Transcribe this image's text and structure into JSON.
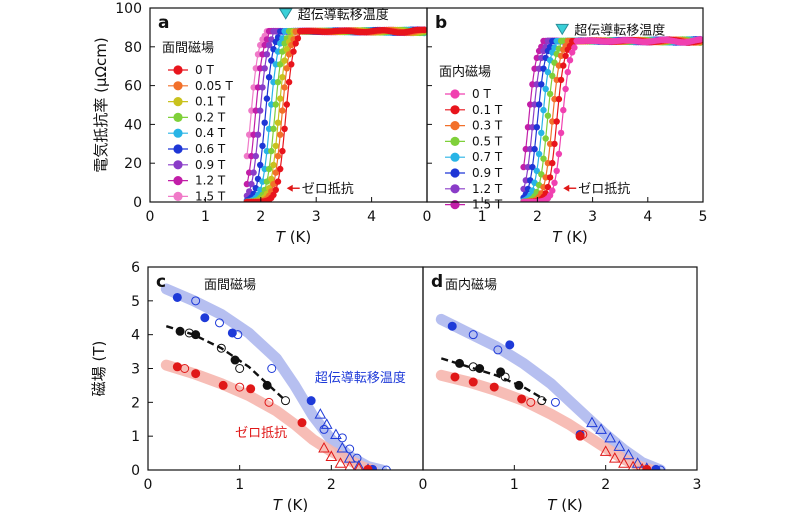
{
  "figure": {
    "panels": [
      {
        "id": "a",
        "type": "line",
        "panel_label": "a",
        "xlabel_italic": "T",
        "xlabel_unit": " (K)",
        "ylabel": "電気抵抗率 (μΩcm)",
        "xlim": [
          0,
          5
        ],
        "ylim": [
          0,
          100
        ],
        "xticks": [
          "0",
          "1",
          "2",
          "3",
          "4"
        ],
        "xtick_values": [
          0,
          1,
          2,
          3,
          4
        ],
        "yticks": [
          "0",
          "20",
          "40",
          "60",
          "80",
          "100"
        ],
        "ytick_values": [
          0,
          20,
          40,
          60,
          80,
          100
        ],
        "field_label": "面間磁場",
        "tc_label": "超伝導転移温度",
        "tc_marker_x": 2.45,
        "tc_marker_y": 97,
        "zero_label": "ゼロ抵抗",
        "zero_arrow_x": 2.45,
        "zero_arrow_y": 4,
        "normal_resistivity": 88,
        "series": [
          {
            "name": "0 T",
            "color": "#e8141c",
            "tc": 2.45
          },
          {
            "name": "0.05 T",
            "color": "#f2702a",
            "tc": 2.38
          },
          {
            "name": "0.1 T",
            "color": "#c9c21e",
            "tc": 2.32
          },
          {
            "name": "0.2 T",
            "color": "#7fd03a",
            "tc": 2.25
          },
          {
            "name": "0.4 T",
            "color": "#28b4e6",
            "tc": 2.17
          },
          {
            "name": "0.6 T",
            "color": "#1e36d6",
            "tc": 2.08
          },
          {
            "name": "0.9 T",
            "color": "#8a3cc8",
            "tc": 1.98
          },
          {
            "name": "1.2 T",
            "color": "#c21ea8",
            "tc": 1.9
          },
          {
            "name": "1.5 T",
            "color": "#f07ac8",
            "tc": 1.82
          }
        ]
      },
      {
        "id": "b",
        "type": "line",
        "panel_label": "b",
        "xlabel_italic": "T",
        "xlabel_unit": " (K)",
        "xlim": [
          0,
          5
        ],
        "ylim": [
          0,
          100
        ],
        "xticks": [
          "0",
          "1",
          "2",
          "3",
          "4",
          "5"
        ],
        "xtick_values": [
          0,
          1,
          2,
          3,
          4,
          5
        ],
        "field_label": "面内磁場",
        "tc_label": "超伝導転移温度",
        "tc_marker_x": 2.45,
        "tc_marker_y": 89,
        "zero_label": "ゼロ抵抗",
        "zero_arrow_x": 2.45,
        "zero_arrow_y": 4,
        "normal_resistivity": 83,
        "series": [
          {
            "name": "0 T",
            "color": "#f040b0",
            "tc": 2.45
          },
          {
            "name": "0.1 T",
            "color": "#e8141c",
            "tc": 2.35
          },
          {
            "name": "0.3 T",
            "color": "#f2702a",
            "tc": 2.27
          },
          {
            "name": "0.5 T",
            "color": "#7fd03a",
            "tc": 2.18
          },
          {
            "name": "0.7 T",
            "color": "#28b4e6",
            "tc": 2.09
          },
          {
            "name": "0.9 T",
            "color": "#1e36d6",
            "tc": 2.0
          },
          {
            "name": "1.2 T",
            "color": "#8a3cc8",
            "tc": 1.92
          },
          {
            "name": "1.5 T",
            "color": "#c21ea8",
            "tc": 1.84
          }
        ]
      },
      {
        "id": "c",
        "type": "scatter",
        "panel_label": "c",
        "xlabel_italic": "T",
        "xlabel_unit": " (K)",
        "ylabel": "磁場 (T)",
        "xlim": [
          0,
          3
        ],
        "ylim": [
          0,
          6
        ],
        "xticks": [
          "0",
          "1",
          "2"
        ],
        "xtick_values": [
          0,
          1,
          2
        ],
        "yticks": [
          "0",
          "1",
          "2",
          "3",
          "4",
          "5",
          "6"
        ],
        "ytick_values": [
          0,
          1,
          2,
          3,
          4,
          5,
          6
        ],
        "field_label": "面間磁場",
        "tc_label": "超伝導転移温度",
        "zero_label": "ゼロ抵抗",
        "tc_color": "#1e3ad8",
        "zero_color": "#e01818",
        "tc_band": [
          [
            0.2,
            5.35
          ],
          [
            0.5,
            5.0
          ],
          [
            0.8,
            4.6
          ],
          [
            1.1,
            4.05
          ],
          [
            1.4,
            3.3
          ],
          [
            1.6,
            2.5
          ],
          [
            1.8,
            1.6
          ],
          [
            2.0,
            0.9
          ],
          [
            2.2,
            0.4
          ],
          [
            2.4,
            0.1
          ],
          [
            2.55,
            0.0
          ]
        ],
        "zero_band": [
          [
            0.2,
            3.1
          ],
          [
            0.5,
            2.85
          ],
          [
            0.8,
            2.55
          ],
          [
            1.1,
            2.2
          ],
          [
            1.4,
            1.75
          ],
          [
            1.6,
            1.35
          ],
          [
            1.8,
            0.9
          ],
          [
            2.0,
            0.55
          ],
          [
            2.2,
            0.28
          ],
          [
            2.35,
            0.08
          ],
          [
            2.45,
            0.0
          ]
        ],
        "dashed_line": [
          [
            0.2,
            4.25
          ],
          [
            0.5,
            4.0
          ],
          [
            0.8,
            3.6
          ],
          [
            1.1,
            3.05
          ],
          [
            1.3,
            2.55
          ],
          [
            1.5,
            2.05
          ]
        ],
        "tc_filled": [
          [
            0.32,
            5.1
          ],
          [
            0.62,
            4.5
          ],
          [
            0.92,
            4.05
          ],
          [
            1.78,
            2.05
          ],
          [
            2.45,
            0.02
          ]
        ],
        "tc_open": [
          [
            0.52,
            5.0
          ],
          [
            0.78,
            4.35
          ],
          [
            0.98,
            4.0
          ],
          [
            1.35,
            3.0
          ],
          [
            2.6,
            0.0
          ]
        ],
        "tc_triangles": [
          [
            1.88,
            1.65
          ],
          [
            1.95,
            1.35
          ],
          [
            2.05,
            1.05
          ],
          [
            2.12,
            0.65
          ],
          [
            2.2,
            0.35
          ],
          [
            2.3,
            0.12
          ],
          [
            2.4,
            0.02
          ]
        ],
        "tc_open_extra": [
          [
            1.92,
            1.2
          ],
          [
            2.12,
            0.95
          ],
          [
            2.2,
            0.62
          ],
          [
            2.28,
            0.35
          ]
        ],
        "zero_filled": [
          [
            0.32,
            3.05
          ],
          [
            0.52,
            2.85
          ],
          [
            0.82,
            2.5
          ],
          [
            1.12,
            2.4
          ],
          [
            1.68,
            1.4
          ],
          [
            2.4,
            0.02
          ]
        ],
        "zero_open": [
          [
            0.4,
            3.0
          ],
          [
            1.0,
            2.45
          ],
          [
            1.32,
            2.0
          ]
        ],
        "zero_triangles": [
          [
            1.92,
            0.65
          ],
          [
            2.0,
            0.4
          ],
          [
            2.1,
            0.2
          ],
          [
            2.2,
            0.1
          ],
          [
            2.3,
            0.05
          ]
        ],
        "dash_filled": [
          [
            0.35,
            4.1
          ],
          [
            0.52,
            4.0
          ],
          [
            0.95,
            3.25
          ],
          [
            1.3,
            2.5
          ]
        ],
        "dash_open": [
          [
            0.45,
            4.05
          ],
          [
            0.8,
            3.6
          ],
          [
            1.0,
            3.0
          ],
          [
            1.5,
            2.05
          ]
        ]
      },
      {
        "id": "d",
        "type": "scatter",
        "panel_label": "d",
        "xlabel_italic": "T",
        "xlabel_unit": " (K)",
        "xlim": [
          0,
          3
        ],
        "ylim": [
          0,
          6
        ],
        "xticks": [
          "0",
          "1",
          "2",
          "3"
        ],
        "xtick_values": [
          0,
          1,
          2,
          3
        ],
        "field_label": "面内磁場",
        "tc_color": "#1e3ad8",
        "zero_color": "#e01818",
        "tc_band": [
          [
            0.2,
            4.45
          ],
          [
            0.5,
            4.05
          ],
          [
            0.8,
            3.65
          ],
          [
            1.1,
            3.15
          ],
          [
            1.4,
            2.55
          ],
          [
            1.6,
            2.05
          ],
          [
            1.8,
            1.55
          ],
          [
            2.0,
            1.05
          ],
          [
            2.2,
            0.6
          ],
          [
            2.4,
            0.22
          ],
          [
            2.6,
            0.0
          ]
        ],
        "zero_band": [
          [
            0.2,
            2.8
          ],
          [
            0.5,
            2.6
          ],
          [
            0.8,
            2.35
          ],
          [
            1.1,
            2.05
          ],
          [
            1.4,
            1.65
          ],
          [
            1.6,
            1.35
          ],
          [
            1.8,
            1.0
          ],
          [
            2.0,
            0.65
          ],
          [
            2.2,
            0.32
          ],
          [
            2.4,
            0.08
          ],
          [
            2.5,
            0.0
          ]
        ],
        "dashed_line": [
          [
            0.2,
            3.3
          ],
          [
            0.5,
            3.05
          ],
          [
            0.8,
            2.8
          ],
          [
            1.1,
            2.45
          ],
          [
            1.35,
            2.05
          ]
        ],
        "tc_filled": [
          [
            0.32,
            4.25
          ],
          [
            0.95,
            3.7
          ],
          [
            1.72,
            1.05
          ],
          [
            2.55,
            0.02
          ]
        ],
        "tc_open": [
          [
            0.55,
            4.0
          ],
          [
            0.82,
            3.55
          ],
          [
            1.45,
            2.0
          ],
          [
            2.6,
            0.0
          ]
        ],
        "tc_triangles": [
          [
            1.85,
            1.4
          ],
          [
            1.95,
            1.2
          ],
          [
            2.05,
            0.95
          ],
          [
            2.15,
            0.7
          ],
          [
            2.25,
            0.45
          ],
          [
            2.35,
            0.2
          ],
          [
            2.45,
            0.05
          ]
        ],
        "zero_filled": [
          [
            0.35,
            2.75
          ],
          [
            0.55,
            2.6
          ],
          [
            0.78,
            2.45
          ],
          [
            1.08,
            2.1
          ],
          [
            1.72,
            1.0
          ],
          [
            2.45,
            0.02
          ]
        ],
        "zero_open": [
          [
            1.18,
            2.0
          ],
          [
            1.75,
            1.05
          ]
        ],
        "zero_triangles": [
          [
            2.0,
            0.55
          ],
          [
            2.1,
            0.35
          ],
          [
            2.2,
            0.2
          ],
          [
            2.3,
            0.1
          ],
          [
            2.4,
            0.03
          ]
        ],
        "dash_filled": [
          [
            0.4,
            3.15
          ],
          [
            0.62,
            3.0
          ],
          [
            0.85,
            2.9
          ],
          [
            1.05,
            2.5
          ]
        ],
        "dash_open": [
          [
            0.55,
            3.05
          ],
          [
            0.9,
            2.75
          ],
          [
            1.3,
            2.05
          ]
        ]
      }
    ]
  }
}
